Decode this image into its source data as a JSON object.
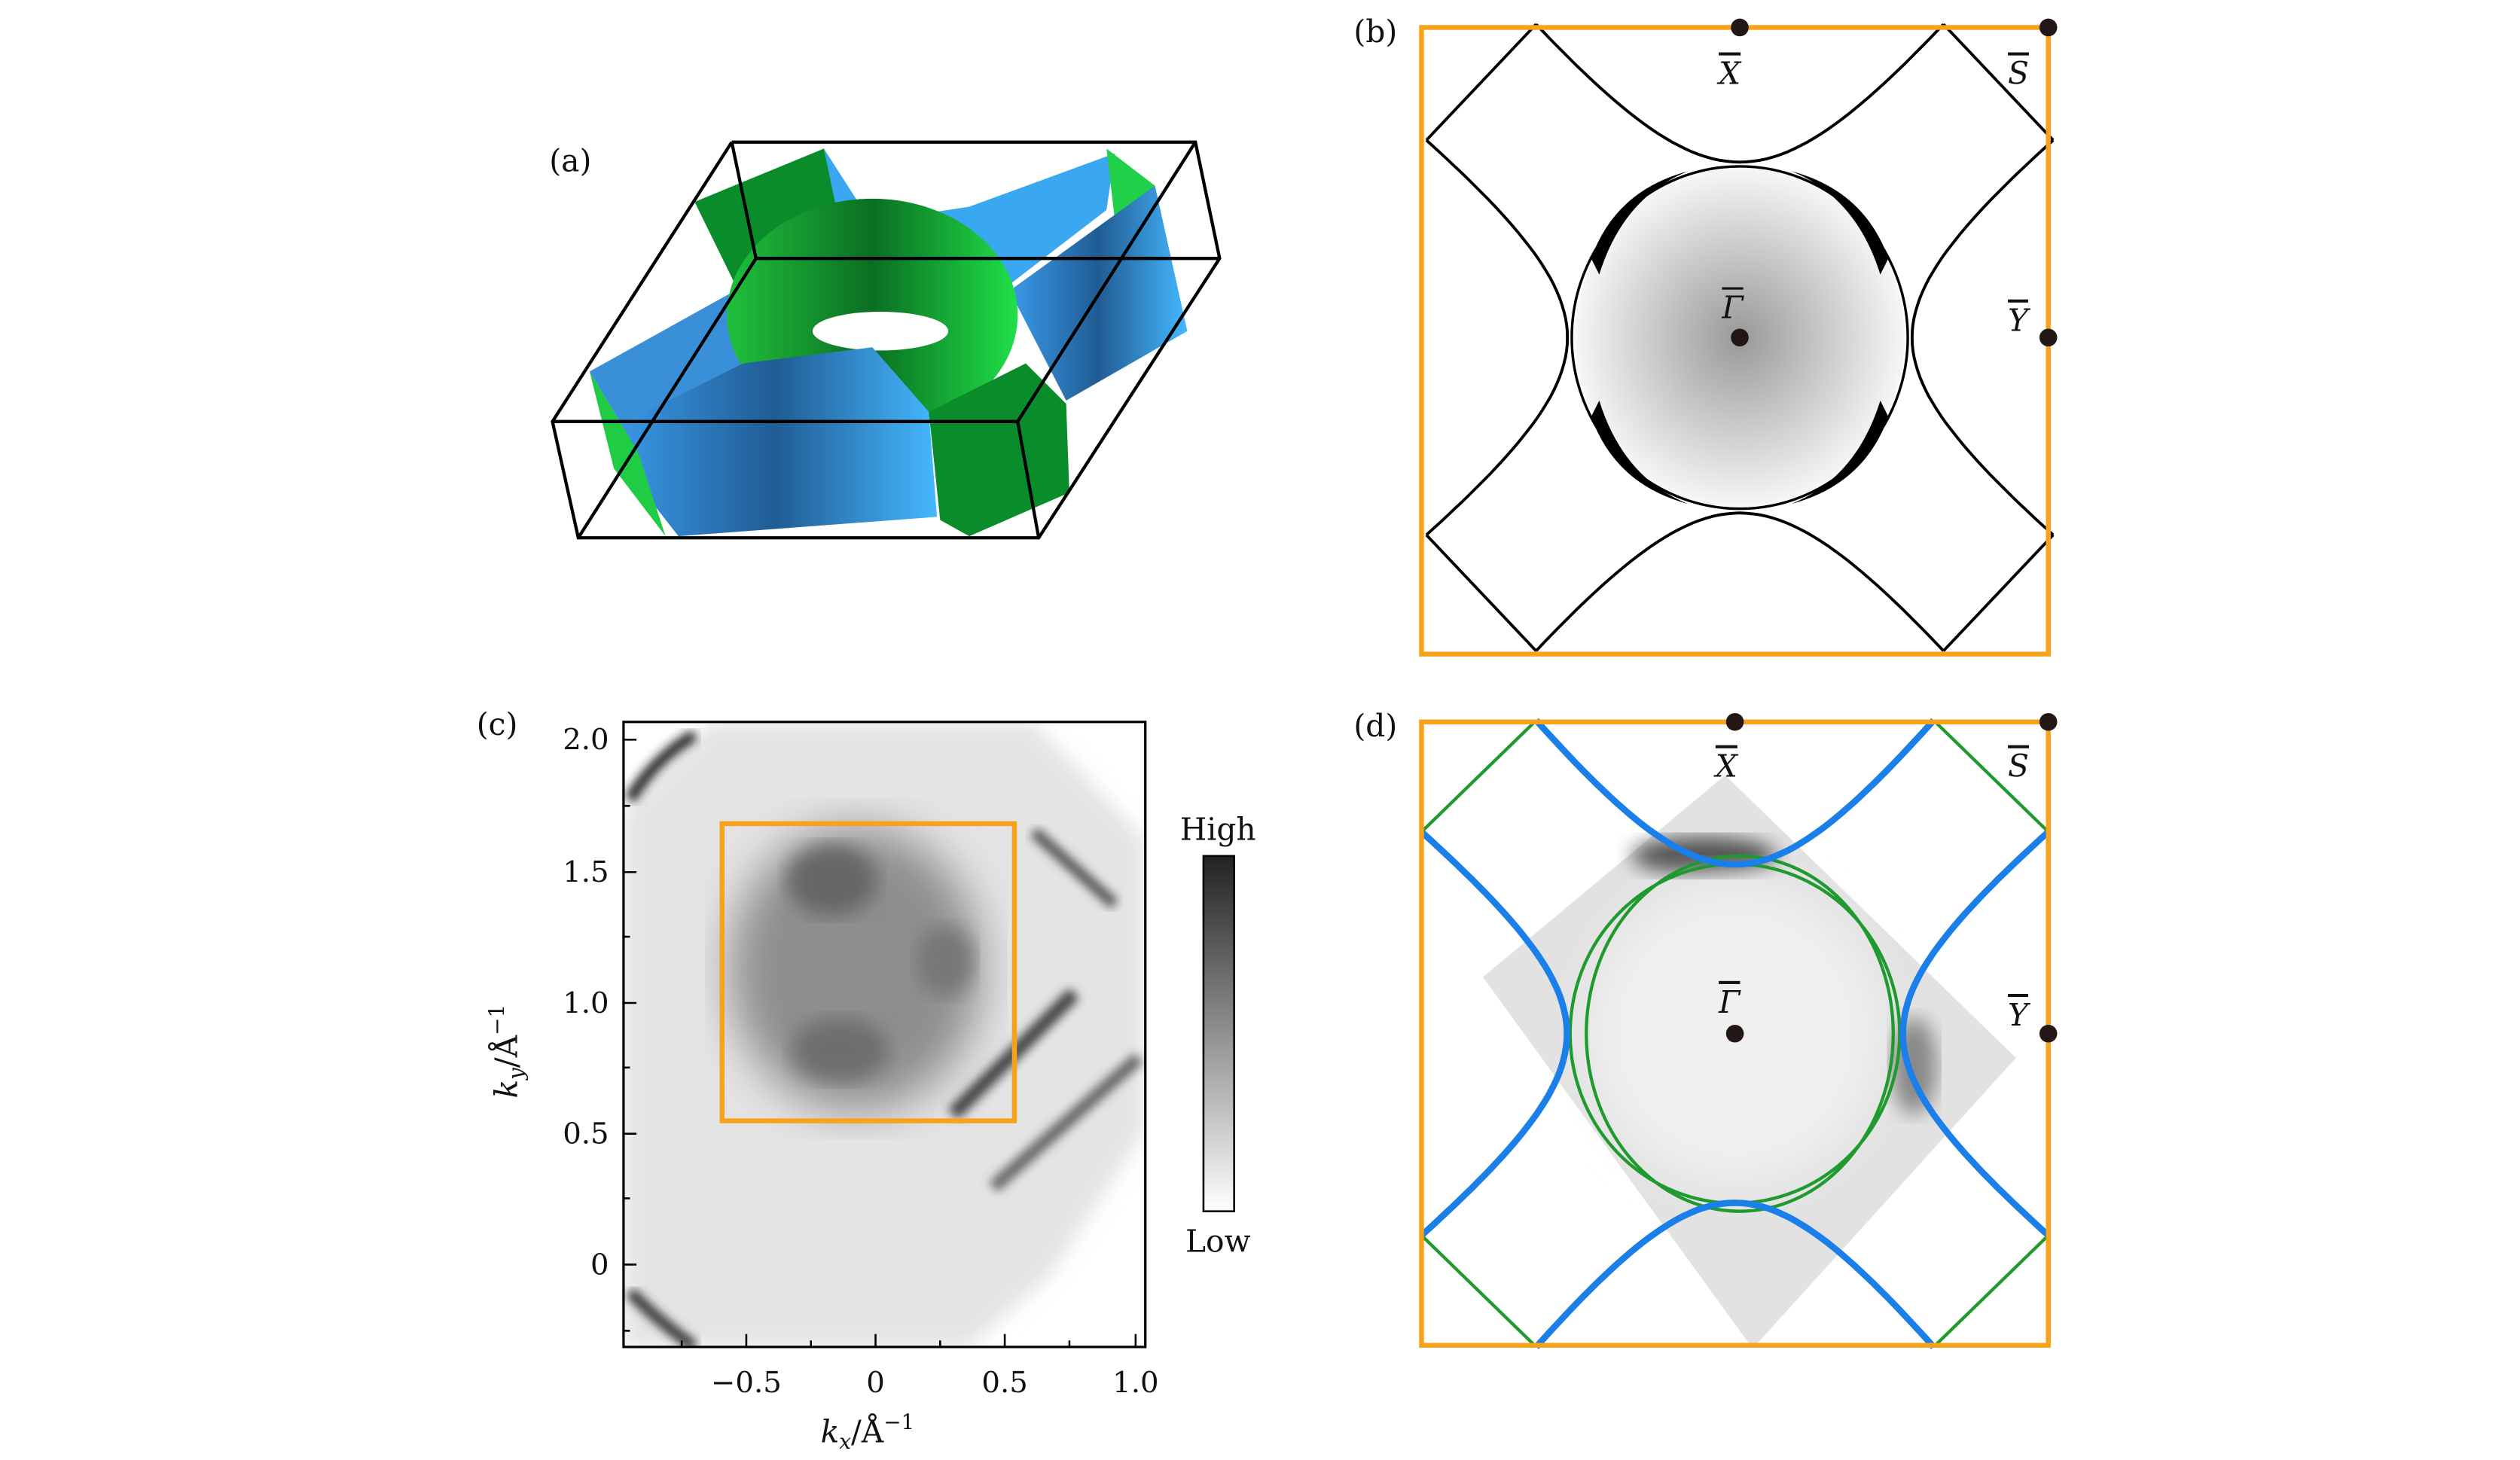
{
  "panels": {
    "a": {
      "label": "(a)"
    },
    "b": {
      "label": "(b)",
      "points": {
        "gamma": "Γ",
        "x": "X",
        "s": "S",
        "y": "Y"
      }
    },
    "c": {
      "label": "(c)",
      "xlabel_main": "k",
      "xlabel_sub": "x",
      "xlabel_unit": "/Å",
      "xlabel_sup": "−1",
      "ylabel_main": "k",
      "ylabel_sub": "y",
      "ylabel_unit": "/Å",
      "ylabel_sup": "−1",
      "xticks": [
        "−0.5",
        "0",
        "0.5",
        "1.0"
      ],
      "yticks": [
        "2.0",
        "1.5",
        "1.0",
        "0.5",
        "0"
      ],
      "xlim": [
        -1.0,
        1.02
      ],
      "ylim": [
        -0.32,
        2.07
      ],
      "colorbar": {
        "high": "High",
        "low": "Low"
      }
    },
    "d": {
      "label": "(d)",
      "points": {
        "gamma": "Γ",
        "x": "X",
        "s": "S",
        "y": "Y"
      }
    }
  },
  "colors": {
    "bz_frame": "#f7a21b",
    "band_blue": "#1a7fe8",
    "band_green": "#1e9a2e"
  }
}
